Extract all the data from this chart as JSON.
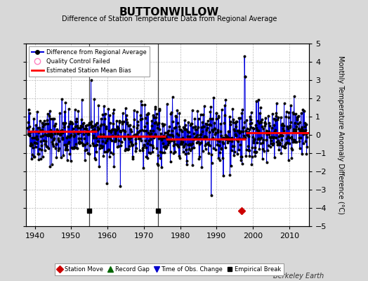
{
  "title": "BUTTONWILLOW",
  "subtitle": "Difference of Station Temperature Data from Regional Average",
  "ylabel": "Monthly Temperature Anomaly Difference (°C)",
  "ylim": [
    -5,
    5
  ],
  "yticks": [
    -5,
    -4,
    -3,
    -2,
    -1,
    0,
    1,
    2,
    3,
    4,
    5
  ],
  "xticks": [
    1940,
    1950,
    1960,
    1970,
    1980,
    1990,
    2000,
    2010
  ],
  "background_color": "#d8d8d8",
  "plot_bg_color": "#ffffff",
  "line_color": "#0000dd",
  "dot_color": "#000000",
  "bias_color": "#ff0000",
  "grid_color": "#bbbbbb",
  "watermark": "Berkeley Earth",
  "empirical_breaks": [
    1955,
    1974
  ],
  "station_moves": [
    1997
  ],
  "bias_segments": [
    {
      "start": 1938,
      "end": 1957,
      "value": 0.18
    },
    {
      "start": 1957,
      "end": 1976,
      "value": -0.08
    },
    {
      "start": 1976,
      "end": 1998,
      "value": -0.22
    },
    {
      "start": 1998,
      "end": 2016,
      "value": 0.12
    }
  ],
  "seed": 42,
  "year_start": 1938,
  "year_end": 2015,
  "xlim_start": 1937.5,
  "xlim_end": 2015.5
}
